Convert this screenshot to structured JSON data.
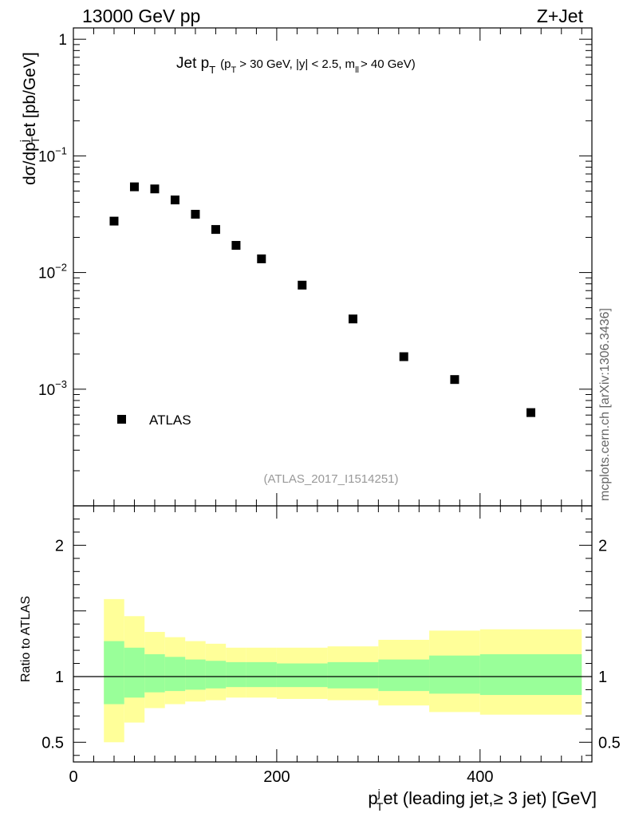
{
  "header": {
    "left": "13000 GeV pp",
    "right": "Z+Jet",
    "watermark": "mcplots.cern.ch [arXiv:1306.3436]"
  },
  "plot": {
    "title_main": "Jet p",
    "title_sub_T": "T",
    "title_cuts": "(p",
    "title_cuts_rest": "> 30 GeV, |y| < 2.5, m",
    "title_cuts_ll": "ll",
    "title_cuts_end": "> 40 GeV)",
    "analysis_id": "(ATLAS_2017_I1514251)",
    "legend_label": "ATLAS",
    "ylabel_top_a": "dσ/dp",
    "ylabel_top_sup_j": "j",
    "ylabel_top_sub_T": "T",
    "ylabel_top_b": "et [pb/GeV]",
    "ylabel_bottom": "Ratio to ATLAS",
    "xlabel_a": "p",
    "xlabel_sup_j": "j",
    "xlabel_sub_T": "T",
    "xlabel_b": "et (leading jet,≥ 3 jet) [GeV]",
    "colors": {
      "band_outer": "#ffff99",
      "band_inner": "#99ff99",
      "marker": "#000000"
    }
  },
  "chart_data": [
    {
      "type": "scatter",
      "name": "main",
      "scale": "log",
      "xlim": [
        0,
        510
      ],
      "ylim": [
        0.0001,
        1.25
      ],
      "x_ticks": [
        0,
        200,
        400
      ],
      "y_ticks": [
        {
          "value": 1,
          "label": "1"
        },
        {
          "value": 0.1,
          "label": "10",
          "exp": "−1"
        },
        {
          "value": 0.01,
          "label": "10",
          "exp": "−2"
        },
        {
          "value": 0.001,
          "label": "10",
          "exp": "−3"
        }
      ],
      "series": [
        {
          "name": "ATLAS",
          "x": [
            40,
            60,
            80,
            100,
            120,
            140,
            160,
            185,
            225,
            275,
            325,
            375,
            450
          ],
          "y": [
            0.0276,
            0.0543,
            0.0521,
            0.0419,
            0.0316,
            0.0234,
            0.0171,
            0.0131,
            0.0078,
            0.004,
            0.0019,
            0.00121,
            0.00063
          ]
        }
      ]
    },
    {
      "type": "area",
      "name": "ratio",
      "scale": "linear",
      "xlim": [
        0,
        510
      ],
      "ylim": [
        0.35,
        2.3
      ],
      "x_ticks": [
        0,
        200,
        400
      ],
      "y_ticks": [
        0.5,
        1,
        2
      ],
      "reference_line": 1,
      "bins": [
        {
          "x0": 30,
          "x1": 50,
          "outer": [
            0.5,
            1.59
          ],
          "inner": [
            0.79,
            1.27
          ]
        },
        {
          "x0": 50,
          "x1": 70,
          "outer": [
            0.65,
            1.46
          ],
          "inner": [
            0.84,
            1.22
          ]
        },
        {
          "x0": 70,
          "x1": 90,
          "outer": [
            0.76,
            1.34
          ],
          "inner": [
            0.88,
            1.17
          ]
        },
        {
          "x0": 90,
          "x1": 110,
          "outer": [
            0.79,
            1.3
          ],
          "inner": [
            0.89,
            1.15
          ]
        },
        {
          "x0": 110,
          "x1": 130,
          "outer": [
            0.81,
            1.27
          ],
          "inner": [
            0.9,
            1.13
          ]
        },
        {
          "x0": 130,
          "x1": 150,
          "outer": [
            0.82,
            1.25
          ],
          "inner": [
            0.91,
            1.12
          ]
        },
        {
          "x0": 150,
          "x1": 170,
          "outer": [
            0.84,
            1.22
          ],
          "inner": [
            0.92,
            1.11
          ]
        },
        {
          "x0": 170,
          "x1": 200,
          "outer": [
            0.84,
            1.22
          ],
          "inner": [
            0.92,
            1.11
          ]
        },
        {
          "x0": 200,
          "x1": 250,
          "outer": [
            0.83,
            1.22
          ],
          "inner": [
            0.92,
            1.1
          ]
        },
        {
          "x0": 250,
          "x1": 300,
          "outer": [
            0.82,
            1.23
          ],
          "inner": [
            0.91,
            1.11
          ]
        },
        {
          "x0": 300,
          "x1": 350,
          "outer": [
            0.78,
            1.28
          ],
          "inner": [
            0.89,
            1.13
          ]
        },
        {
          "x0": 350,
          "x1": 400,
          "outer": [
            0.73,
            1.35
          ],
          "inner": [
            0.87,
            1.16
          ]
        },
        {
          "x0": 400,
          "x1": 500,
          "outer": [
            0.71,
            1.36
          ],
          "inner": [
            0.86,
            1.17
          ]
        }
      ]
    }
  ]
}
